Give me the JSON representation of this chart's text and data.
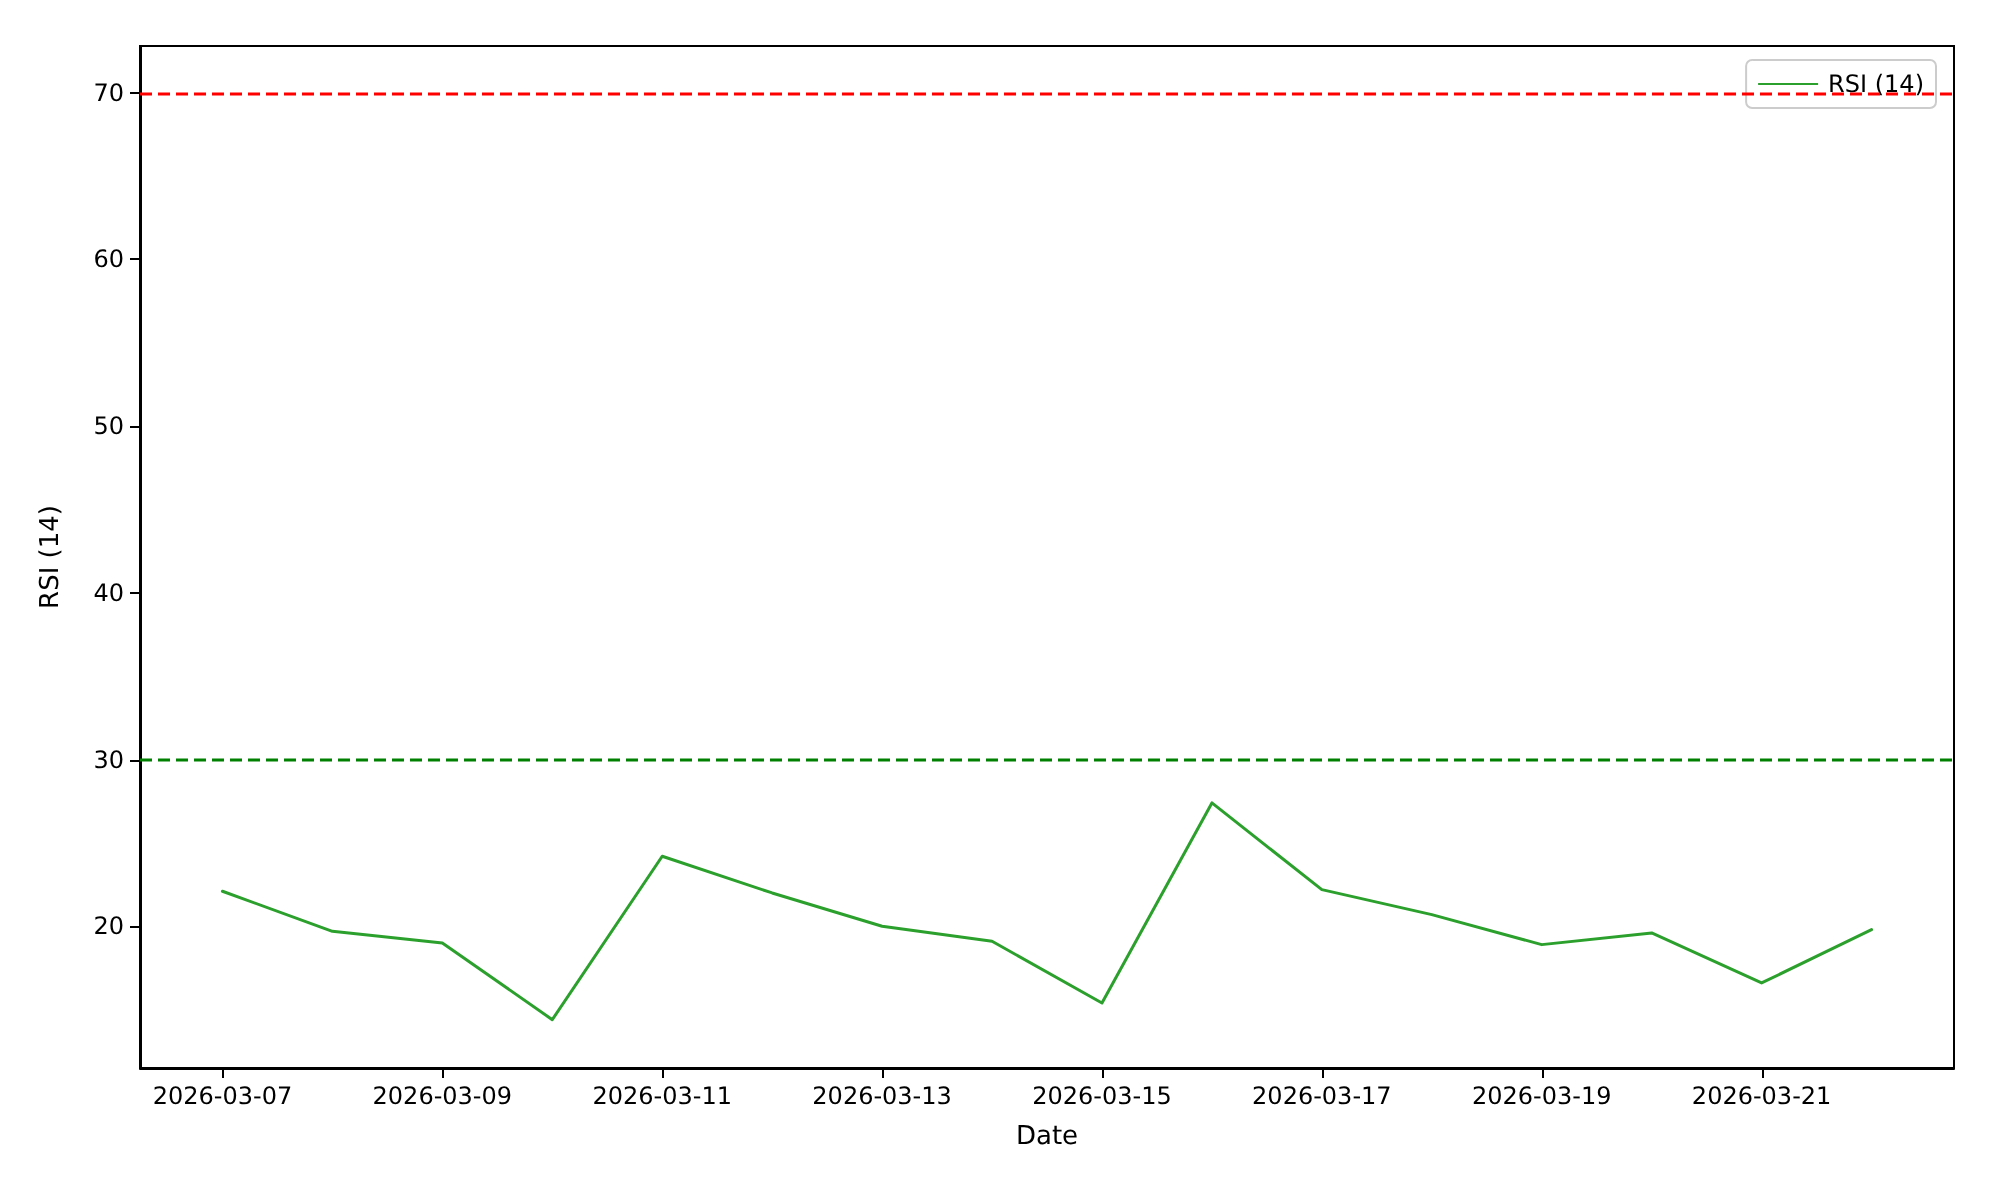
{
  "chart_data": {
    "type": "line",
    "xlabel": "Date",
    "ylabel": "RSI (14)",
    "x": [
      "2026-03-07",
      "2026-03-08",
      "2026-03-09",
      "2026-03-10",
      "2026-03-11",
      "2026-03-12",
      "2026-03-13",
      "2026-03-14",
      "2026-03-15",
      "2026-03-16",
      "2026-03-17",
      "2026-03-18",
      "2026-03-19",
      "2026-03-20",
      "2026-03-21",
      "2026-03-22"
    ],
    "series": [
      {
        "name": "RSI (14)",
        "color": "#2ca02c",
        "values": [
          22.1,
          19.7,
          19.0,
          14.4,
          24.2,
          22.0,
          20.0,
          19.1,
          15.4,
          27.4,
          22.2,
          20.7,
          18.9,
          19.6,
          16.6,
          19.8
        ]
      }
    ],
    "xlim": [
      "2026-03-06T06:00",
      "2026-03-22T18:00"
    ],
    "xticks": [
      "2026-03-07",
      "2026-03-09",
      "2026-03-11",
      "2026-03-13",
      "2026-03-15",
      "2026-03-17",
      "2026-03-19",
      "2026-03-21"
    ],
    "ylim": [
      11.5,
      72.8
    ],
    "yticks": [
      20,
      30,
      40,
      50,
      60,
      70
    ],
    "ref_lines": [
      {
        "axis": "y",
        "value": 70,
        "color": "#ff0000",
        "line_style": "dashed"
      },
      {
        "axis": "y",
        "value": 30,
        "color": "#008000",
        "line_style": "dashed"
      }
    ],
    "legend": "top right",
    "grid": false,
    "marker": "none",
    "line_style": "solid"
  }
}
